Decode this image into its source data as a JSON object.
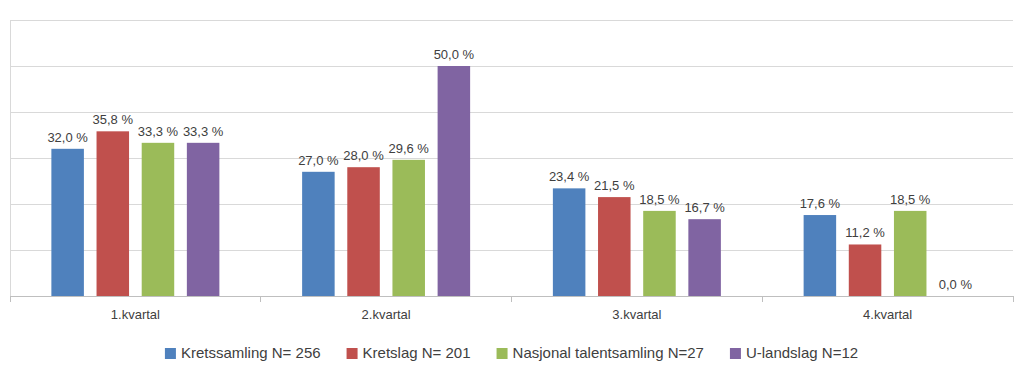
{
  "chart_data": {
    "type": "bar",
    "categories": [
      "1.kvartal",
      "2.kvartal",
      "3.kvartal",
      "4.kvartal"
    ],
    "series": [
      {
        "name": "Kretssamling N= 256",
        "color": "#4f81bd",
        "values": [
          32.0,
          27.0,
          23.4,
          17.6
        ],
        "value_labels": [
          "32,0 %",
          "27,0 %",
          "23,4 %",
          "17,6 %"
        ]
      },
      {
        "name": "Kretslag N= 201",
        "color": "#c0504d",
        "values": [
          35.8,
          28.0,
          21.5,
          11.2
        ],
        "value_labels": [
          "35,8 %",
          "28,0 %",
          "21,5 %",
          "11,2 %"
        ]
      },
      {
        "name": "Nasjonal talentsamling N=27",
        "color": "#9bbb59",
        "values": [
          33.3,
          29.6,
          18.5,
          18.5
        ],
        "value_labels": [
          "33,3 %",
          "29,6 %",
          "18,5 %",
          "18,5 %"
        ]
      },
      {
        "name": "U-landslag N=12",
        "color": "#8064a2",
        "values": [
          33.3,
          50.0,
          16.7,
          0.0
        ],
        "value_labels": [
          "33,3 %",
          "50,0 %",
          "16,7 %",
          "0,0 %"
        ]
      }
    ],
    "ylim": [
      0,
      60
    ],
    "yticks": [
      0,
      10,
      20,
      30,
      40,
      50,
      60
    ],
    "grid": true,
    "legend": "bottom",
    "data_labels": true,
    "tick_labels": "x"
  }
}
